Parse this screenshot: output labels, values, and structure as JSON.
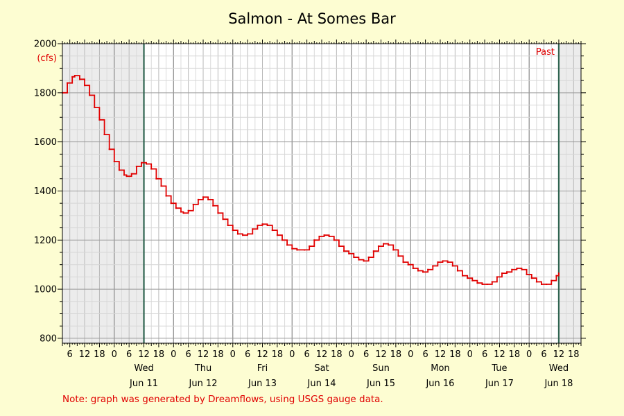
{
  "chart_data": {
    "type": "line",
    "title": "Salmon - At Somes Bar",
    "ylabel": "(cfs)",
    "ylim": [
      780,
      2000
    ],
    "y_ticks": [
      800,
      1000,
      1200,
      1400,
      1600,
      1800,
      2000
    ],
    "x_range": [
      "2025-06-10T03:00",
      "2025-06-18T21:00"
    ],
    "hour_tick_labels": [
      "6",
      "12",
      "18",
      "0"
    ],
    "days": [
      {
        "weekday": "Wed",
        "date": "Jun 11",
        "noon": "2025-06-11T12:00"
      },
      {
        "weekday": "Thu",
        "date": "Jun 12",
        "noon": "2025-06-12T12:00"
      },
      {
        "weekday": "Fri",
        "date": "Jun 13",
        "noon": "2025-06-13T12:00"
      },
      {
        "weekday": "Sat",
        "date": "Jun 14",
        "noon": "2025-06-14T12:00"
      },
      {
        "weekday": "Sun",
        "date": "Jun 15",
        "noon": "2025-06-15T12:00"
      },
      {
        "weekday": "Mon",
        "date": "Jun 16",
        "noon": "2025-06-16T12:00"
      },
      {
        "weekday": "Tue",
        "date": "Jun 17",
        "noon": "2025-06-17T12:00"
      },
      {
        "weekday": "Wed",
        "date": "Jun 18",
        "noon": "2025-06-18T12:00"
      }
    ],
    "shaded_regions": [
      {
        "start": "2025-06-10T03:00",
        "end": "2025-06-11T12:00"
      },
      {
        "start": "2025-06-18T12:00",
        "end": "2025-06-18T21:00"
      }
    ],
    "marker_lines": [
      "2025-06-11T12:00",
      "2025-06-18T12:00"
    ],
    "past_label": "Past",
    "grid": true,
    "series": [
      {
        "color": "#e00000",
        "points": [
          [
            "2025-06-10T03:00",
            1800
          ],
          [
            "2025-06-10T05:00",
            1840
          ],
          [
            "2025-06-10T07:00",
            1865
          ],
          [
            "2025-06-10T08:00",
            1870
          ],
          [
            "2025-06-10T10:00",
            1855
          ],
          [
            "2025-06-10T12:00",
            1830
          ],
          [
            "2025-06-10T14:00",
            1790
          ],
          [
            "2025-06-10T16:00",
            1740
          ],
          [
            "2025-06-10T18:00",
            1690
          ],
          [
            "2025-06-10T20:00",
            1630
          ],
          [
            "2025-06-10T22:00",
            1570
          ],
          [
            "2025-06-11T00:00",
            1520
          ],
          [
            "2025-06-11T02:00",
            1485
          ],
          [
            "2025-06-11T04:00",
            1465
          ],
          [
            "2025-06-11T05:00",
            1460
          ],
          [
            "2025-06-11T07:00",
            1470
          ],
          [
            "2025-06-11T09:00",
            1500
          ],
          [
            "2025-06-11T11:00",
            1515
          ],
          [
            "2025-06-11T13:00",
            1510
          ],
          [
            "2025-06-11T15:00",
            1490
          ],
          [
            "2025-06-11T17:00",
            1450
          ],
          [
            "2025-06-11T19:00",
            1420
          ],
          [
            "2025-06-11T21:00",
            1380
          ],
          [
            "2025-06-11T23:00",
            1350
          ],
          [
            "2025-06-12T01:00",
            1330
          ],
          [
            "2025-06-12T03:00",
            1315
          ],
          [
            "2025-06-12T04:00",
            1310
          ],
          [
            "2025-06-12T06:00",
            1320
          ],
          [
            "2025-06-12T08:00",
            1345
          ],
          [
            "2025-06-12T10:00",
            1365
          ],
          [
            "2025-06-12T12:00",
            1375
          ],
          [
            "2025-06-12T14:00",
            1365
          ],
          [
            "2025-06-12T16:00",
            1340
          ],
          [
            "2025-06-12T18:00",
            1310
          ],
          [
            "2025-06-12T20:00",
            1285
          ],
          [
            "2025-06-12T22:00",
            1260
          ],
          [
            "2025-06-13T00:00",
            1240
          ],
          [
            "2025-06-13T02:00",
            1225
          ],
          [
            "2025-06-13T04:00",
            1220
          ],
          [
            "2025-06-13T06:00",
            1225
          ],
          [
            "2025-06-13T08:00",
            1245
          ],
          [
            "2025-06-13T10:00",
            1260
          ],
          [
            "2025-06-13T12:00",
            1265
          ],
          [
            "2025-06-13T14:00",
            1260
          ],
          [
            "2025-06-13T16:00",
            1240
          ],
          [
            "2025-06-13T18:00",
            1220
          ],
          [
            "2025-06-13T20:00",
            1200
          ],
          [
            "2025-06-13T22:00",
            1180
          ],
          [
            "2025-06-14T00:00",
            1165
          ],
          [
            "2025-06-14T02:00",
            1160
          ],
          [
            "2025-06-14T05:00",
            1160
          ],
          [
            "2025-06-14T07:00",
            1175
          ],
          [
            "2025-06-14T09:00",
            1200
          ],
          [
            "2025-06-14T11:00",
            1215
          ],
          [
            "2025-06-14T13:00",
            1220
          ],
          [
            "2025-06-14T15:00",
            1215
          ],
          [
            "2025-06-14T17:00",
            1200
          ],
          [
            "2025-06-14T19:00",
            1175
          ],
          [
            "2025-06-14T21:00",
            1155
          ],
          [
            "2025-06-14T23:00",
            1145
          ],
          [
            "2025-06-15T01:00",
            1130
          ],
          [
            "2025-06-15T03:00",
            1120
          ],
          [
            "2025-06-15T05:00",
            1115
          ],
          [
            "2025-06-15T07:00",
            1130
          ],
          [
            "2025-06-15T09:00",
            1155
          ],
          [
            "2025-06-15T11:00",
            1175
          ],
          [
            "2025-06-15T13:00",
            1185
          ],
          [
            "2025-06-15T15:00",
            1180
          ],
          [
            "2025-06-15T17:00",
            1160
          ],
          [
            "2025-06-15T19:00",
            1135
          ],
          [
            "2025-06-15T21:00",
            1110
          ],
          [
            "2025-06-15T23:00",
            1100
          ],
          [
            "2025-06-16T01:00",
            1085
          ],
          [
            "2025-06-16T03:00",
            1075
          ],
          [
            "2025-06-16T05:00",
            1070
          ],
          [
            "2025-06-16T07:00",
            1080
          ],
          [
            "2025-06-16T09:00",
            1095
          ],
          [
            "2025-06-16T11:00",
            1110
          ],
          [
            "2025-06-16T13:00",
            1115
          ],
          [
            "2025-06-16T15:00",
            1110
          ],
          [
            "2025-06-16T17:00",
            1095
          ],
          [
            "2025-06-16T19:00",
            1075
          ],
          [
            "2025-06-16T21:00",
            1055
          ],
          [
            "2025-06-16T23:00",
            1045
          ],
          [
            "2025-06-17T01:00",
            1035
          ],
          [
            "2025-06-17T03:00",
            1025
          ],
          [
            "2025-06-17T05:00",
            1020
          ],
          [
            "2025-06-17T07:00",
            1020
          ],
          [
            "2025-06-17T09:00",
            1030
          ],
          [
            "2025-06-17T11:00",
            1050
          ],
          [
            "2025-06-17T13:00",
            1065
          ],
          [
            "2025-06-17T15:00",
            1070
          ],
          [
            "2025-06-17T17:00",
            1080
          ],
          [
            "2025-06-17T19:00",
            1085
          ],
          [
            "2025-06-17T21:00",
            1080
          ],
          [
            "2025-06-17T23:00",
            1060
          ],
          [
            "2025-06-18T01:00",
            1045
          ],
          [
            "2025-06-18T03:00",
            1030
          ],
          [
            "2025-06-18T05:00",
            1020
          ],
          [
            "2025-06-18T07:00",
            1020
          ],
          [
            "2025-06-18T09:00",
            1035
          ],
          [
            "2025-06-18T11:00",
            1055
          ],
          [
            "2025-06-18T12:00",
            1065
          ]
        ]
      }
    ]
  },
  "note": "Note: graph was generated by Dreamflows, using USGS gauge data."
}
